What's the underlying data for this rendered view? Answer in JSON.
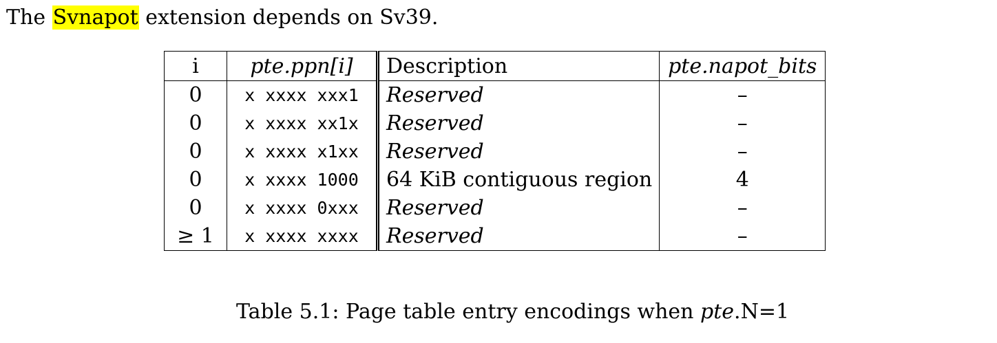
{
  "intro": {
    "prefix": "The",
    "highlight": "Svnapot",
    "suffix": "extension depends on Sv39."
  },
  "table": {
    "headers": {
      "i": "i",
      "ppn": "pte.ppn[i]",
      "description": "Description",
      "napot": "pte.napot_bits"
    },
    "rows": [
      {
        "i": "0",
        "ppn": "x xxxx xxx1",
        "description": "Reserved",
        "napot": "–"
      },
      {
        "i": "0",
        "ppn": "x xxxx xx1x",
        "description": "Reserved",
        "napot": "–"
      },
      {
        "i": "0",
        "ppn": "x xxxx x1xx",
        "description": "Reserved",
        "napot": "–"
      },
      {
        "i": "0",
        "ppn": "x xxxx 1000",
        "description": "64 KiB contiguous region",
        "napot": "4"
      },
      {
        "i": "0",
        "ppn": "x xxxx 0xxx",
        "description": "Reserved",
        "napot": "–"
      },
      {
        "i": "≥ 1",
        "ppn": "x xxxx xxxx",
        "description": "Reserved",
        "napot": "–"
      }
    ]
  },
  "caption": {
    "prefix": "Table 5.1: Page table entry encodings when",
    "pte": "pte",
    "suffix": ".N=1"
  },
  "colors": {
    "highlight": "#ffff00"
  }
}
